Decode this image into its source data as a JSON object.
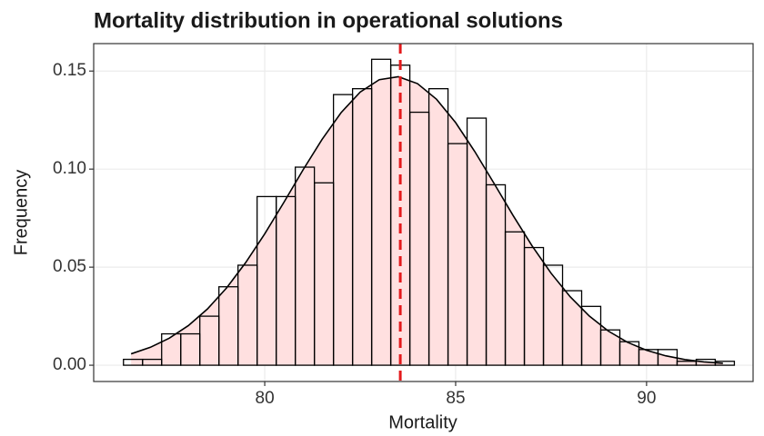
{
  "chart_data": {
    "type": "histogram",
    "title": "Mortality distribution in operational solutions",
    "xlabel": "Mortality",
    "ylabel": "Frequency",
    "bins": [
      76.3,
      76.8,
      77.3,
      77.8,
      78.3,
      78.8,
      79.3,
      79.8,
      80.3,
      80.8,
      81.3,
      81.8,
      82.3,
      82.8,
      83.3,
      83.8,
      84.3,
      84.8,
      85.3,
      85.8,
      86.3,
      86.8,
      87.3,
      87.8,
      88.3,
      88.8,
      89.3,
      89.8,
      90.3,
      90.8,
      91.3,
      91.8,
      92.3
    ],
    "values": [
      0.003,
      0.003,
      0.016,
      0.016,
      0.025,
      0.04,
      0.051,
      0.086,
      0.086,
      0.101,
      0.093,
      0.138,
      0.141,
      0.156,
      0.153,
      0.129,
      0.141,
      0.113,
      0.126,
      0.092,
      0.068,
      0.06,
      0.051,
      0.038,
      0.03,
      0.018,
      0.012,
      0.008,
      0.008,
      0.002,
      0.003,
      0.002
    ],
    "bar_color": "#000000",
    "density": {
      "color": "#000000",
      "fill": "#ffe0e0",
      "x": [
        76.5,
        77,
        77.5,
        78,
        78.5,
        79,
        79.5,
        80,
        80.5,
        81,
        81.5,
        82,
        82.5,
        83,
        83.5,
        84,
        84.5,
        85,
        85.5,
        86,
        86.5,
        87,
        87.5,
        88,
        88.5,
        89,
        89.5,
        90,
        90.5,
        91,
        91.5,
        92
      ],
      "values": [
        0.0058,
        0.0091,
        0.0138,
        0.0202,
        0.0287,
        0.0394,
        0.0523,
        0.067,
        0.083,
        0.0995,
        0.1151,
        0.1288,
        0.1393,
        0.1456,
        0.1471,
        0.1436,
        0.1356,
        0.1237,
        0.109,
        0.0929,
        0.0765,
        0.0609,
        0.0469,
        0.0349,
        0.0251,
        0.0174,
        0.0117,
        0.0076,
        0.0048,
        0.0029,
        0.0017,
        0.001
      ]
    },
    "mean": 83.55,
    "mean_color": "#e41a1c",
    "xlim": [
      75.52,
      92.79
    ],
    "xticks": [
      80,
      85,
      90
    ],
    "ylim": [
      -0.0083,
      0.164
    ],
    "yticks": [
      {
        "value": 0,
        "label": "0.00"
      },
      0.05,
      {
        "value": 0.1,
        "label": "0.10"
      },
      0.15
    ],
    "grid": true
  }
}
